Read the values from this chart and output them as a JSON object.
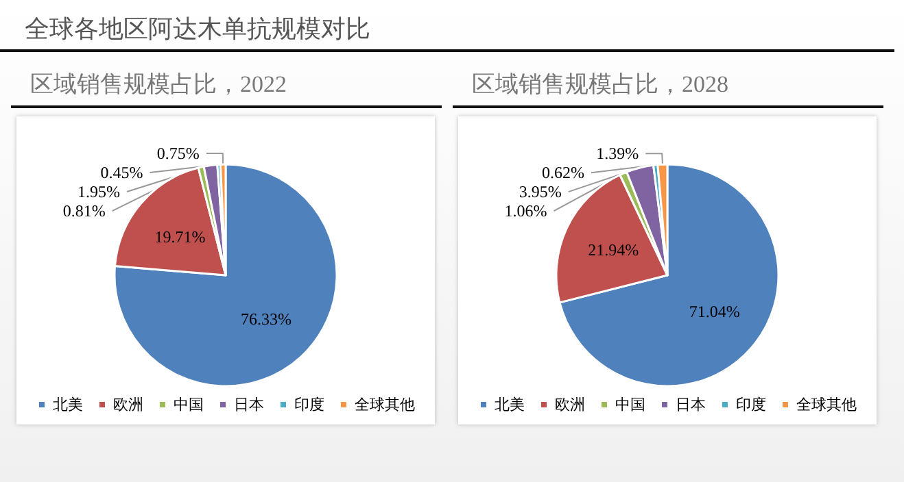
{
  "chart_data": [
    {
      "type": "other",
      "title": "全球各地区阿达木单抗规模对比"
    },
    {
      "type": "pie",
      "title": "区域销售规模占比，2022",
      "categories": [
        "北美",
        "欧洲",
        "中国",
        "日本",
        "印度",
        "全球其他"
      ],
      "values": [
        76.33,
        19.71,
        0.81,
        1.95,
        0.45,
        0.75
      ],
      "value_labels": [
        "76.33%",
        "19.71%",
        "0.81%",
        "1.95%",
        "0.45%",
        "0.75%"
      ],
      "colors": [
        "#4f81bd",
        "#c0504d",
        "#9bbb59",
        "#8064a2",
        "#4bacc6",
        "#f79646"
      ],
      "legend": "bottom"
    },
    {
      "type": "pie",
      "title": "区域销售规模占比，2028",
      "categories": [
        "北美",
        "欧洲",
        "中国",
        "日本",
        "印度",
        "全球其他"
      ],
      "values": [
        71.04,
        21.94,
        1.06,
        3.95,
        0.62,
        1.39
      ],
      "value_labels": [
        "71.04%",
        "21.94%",
        "1.06%",
        "3.95%",
        "0.62%",
        "1.39%"
      ],
      "colors": [
        "#4f81bd",
        "#c0504d",
        "#9bbb59",
        "#8064a2",
        "#4bacc6",
        "#f79646"
      ],
      "legend": "bottom"
    }
  ]
}
